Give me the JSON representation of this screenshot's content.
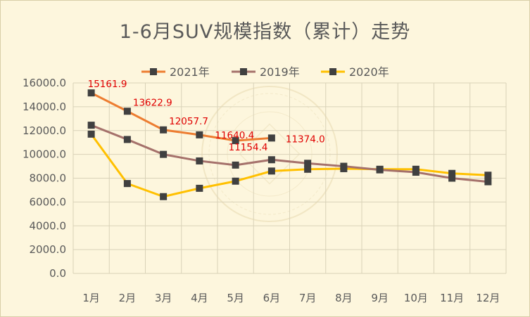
{
  "chart_data": {
    "type": "line",
    "title": "1-6月SUV规模指数（累计）走势",
    "categories": [
      "1月",
      "2月",
      "3月",
      "4月",
      "5月",
      "6月",
      "7月",
      "8月",
      "9月",
      "10月",
      "11月",
      "12月"
    ],
    "ylim": [
      0,
      16000
    ],
    "yticks": [
      "0.0",
      "2000.0",
      "4000.0",
      "6000.0",
      "8000.0",
      "10000.0",
      "12000.0",
      "14000.0",
      "16000.0"
    ],
    "grid": true,
    "legend_position": "top",
    "series": [
      {
        "name": "2021年",
        "color": "#ed7d31",
        "values": [
          15161.9,
          13622.9,
          12057.7,
          11640.4,
          11154.4,
          11374.0,
          null,
          null,
          null,
          null,
          null,
          null
        ],
        "labels": [
          "15161.9",
          "13622.9",
          "12057.7",
          "11640.4",
          "11154.4",
          "11374.0"
        ]
      },
      {
        "name": "2019年",
        "color": "#a5716b",
        "values": [
          12450,
          11250,
          10000,
          9450,
          9100,
          9550,
          9250,
          9000,
          8700,
          8500,
          8000,
          7700
        ]
      },
      {
        "name": "2020年",
        "color": "#ffc000",
        "values": [
          11700,
          7550,
          6450,
          7150,
          7750,
          8600,
          8750,
          8800,
          8750,
          8750,
          8400,
          8250
        ]
      }
    ]
  }
}
